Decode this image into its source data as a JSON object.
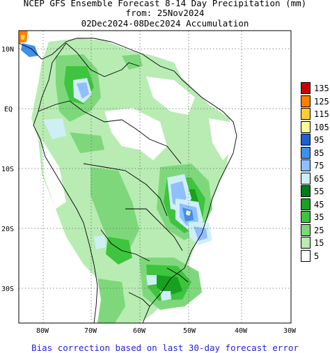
{
  "header": {
    "line1": "NCEP GFS Ensemble Forecast 8-14 Day Precipitation (mm)",
    "line2": "from: 25Nov2024",
    "line3": "02Dec2024-08Dec2024 Accumulation"
  },
  "map": {
    "lat_labels": [
      "10N",
      "EQ",
      "10S",
      "20S",
      "30S"
    ],
    "lon_labels": [
      "80W",
      "70W",
      "60W",
      "50W",
      "40W",
      "30W"
    ]
  },
  "legend": {
    "items": [
      {
        "label": "135",
        "color": "#cc0000"
      },
      {
        "label": "125",
        "color": "#ff7f00"
      },
      {
        "label": "115",
        "color": "#ffcc33"
      },
      {
        "label": "105",
        "color": "#ffff99"
      },
      {
        "label": "95",
        "color": "#1f5fd6"
      },
      {
        "label": "85",
        "color": "#3d8ff0"
      },
      {
        "label": "75",
        "color": "#8fbfff"
      },
      {
        "label": "65",
        "color": "#cfeff7"
      },
      {
        "label": "55",
        "color": "#007a1a"
      },
      {
        "label": "45",
        "color": "#16a21e"
      },
      {
        "label": "35",
        "color": "#3ec43e"
      },
      {
        "label": "25",
        "color": "#7ed87b"
      },
      {
        "label": "15",
        "color": "#b8ecb3"
      },
      {
        "label": "5",
        "color": "#ffffff"
      }
    ]
  },
  "footer": {
    "note": "Bias correction based on last 30-day forecast error"
  }
}
